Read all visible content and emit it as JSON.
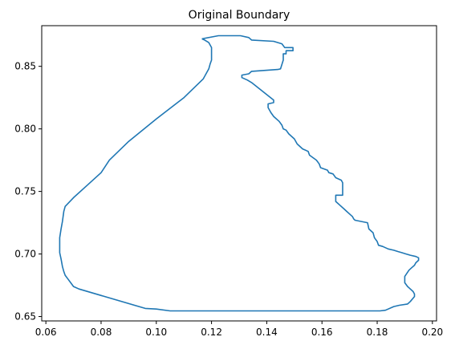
{
  "chart_data": {
    "type": "line",
    "title": "Original Boundary",
    "xlabel": "",
    "ylabel": "",
    "xlim": [
      0.0585,
      0.2015
    ],
    "ylim": [
      0.6465,
      0.8825
    ],
    "grid": false,
    "xticks": [
      0.06,
      0.08,
      0.1,
      0.12,
      0.14,
      0.16,
      0.18,
      0.2
    ],
    "yticks": [
      0.65,
      0.7,
      0.75,
      0.8,
      0.85
    ],
    "xtick_labels": [
      "0.06",
      "0.08",
      "0.10",
      "0.12",
      "0.14",
      "0.16",
      "0.18",
      "0.20"
    ],
    "ytick_labels": [
      "0.65",
      "0.70",
      "0.75",
      "0.80",
      "0.85"
    ],
    "series": [
      {
        "color": "#1f77b4",
        "x": [
          0.1165,
          0.1225,
          0.1305,
          0.1335,
          0.1345,
          0.1425,
          0.1455,
          0.1465,
          0.1495,
          0.1495,
          0.147,
          0.147,
          0.146,
          0.146,
          0.145,
          0.144,
          0.1345,
          0.1335,
          0.131,
          0.131,
          0.133,
          0.1345,
          0.1425,
          0.1425,
          0.1405,
          0.1405,
          0.1415,
          0.1425,
          0.1445,
          0.1455,
          0.146,
          0.147,
          0.148,
          0.15,
          0.151,
          0.152,
          0.153,
          0.155,
          0.1555,
          0.158,
          0.159,
          0.1595,
          0.162,
          0.1625,
          0.164,
          0.165,
          0.167,
          0.1675,
          0.1675,
          0.165,
          0.165,
          0.1665,
          0.168,
          0.169,
          0.17,
          0.171,
          0.1715,
          0.172,
          0.1765,
          0.177,
          0.1785,
          0.179,
          0.18,
          0.1805,
          0.182,
          0.184,
          0.186,
          0.1875,
          0.189,
          0.1905,
          0.192,
          0.194,
          0.195,
          0.195,
          0.194,
          0.1935,
          0.1925,
          0.1915,
          0.19,
          0.19,
          0.191,
          0.192,
          0.193,
          0.1935,
          0.1935,
          0.192,
          0.191,
          0.188,
          0.186,
          0.183,
          0.181,
          0.179,
          0.105,
          0.1,
          0.096,
          0.072,
          0.07,
          0.069,
          0.068,
          0.067,
          0.0665,
          0.066,
          0.0655,
          0.065,
          0.065,
          0.0655,
          0.066,
          0.0665,
          0.067,
          0.07,
          0.075,
          0.08,
          0.083,
          0.09,
          0.1,
          0.11,
          0.117,
          0.119,
          0.1195,
          0.12,
          0.12,
          0.119,
          0.1175,
          0.1165
        ],
        "y": [
          0.872,
          0.8745,
          0.8745,
          0.873,
          0.871,
          0.87,
          0.868,
          0.865,
          0.865,
          0.8625,
          0.8625,
          0.86,
          0.86,
          0.855,
          0.848,
          0.8475,
          0.846,
          0.844,
          0.843,
          0.841,
          0.839,
          0.837,
          0.823,
          0.821,
          0.82,
          0.817,
          0.813,
          0.81,
          0.806,
          0.803,
          0.8,
          0.799,
          0.796,
          0.792,
          0.788,
          0.786,
          0.784,
          0.782,
          0.779,
          0.775,
          0.772,
          0.769,
          0.767,
          0.765,
          0.764,
          0.761,
          0.759,
          0.757,
          0.747,
          0.747,
          0.742,
          0.739,
          0.736,
          0.734,
          0.732,
          0.73,
          0.728,
          0.727,
          0.725,
          0.72,
          0.717,
          0.713,
          0.71,
          0.707,
          0.706,
          0.704,
          0.703,
          0.702,
          0.701,
          0.7,
          0.699,
          0.698,
          0.697,
          0.695,
          0.693,
          0.691,
          0.689,
          0.687,
          0.682,
          0.677,
          0.674,
          0.672,
          0.67,
          0.668,
          0.666,
          0.662,
          0.66,
          0.659,
          0.658,
          0.655,
          0.6545,
          0.6545,
          0.6545,
          0.656,
          0.6565,
          0.672,
          0.674,
          0.677,
          0.68,
          0.683,
          0.686,
          0.69,
          0.696,
          0.701,
          0.713,
          0.72,
          0.726,
          0.734,
          0.738,
          0.745,
          0.755,
          0.765,
          0.775,
          0.79,
          0.808,
          0.825,
          0.84,
          0.848,
          0.852,
          0.855,
          0.865,
          0.869,
          0.871,
          0.872
        ]
      }
    ]
  }
}
